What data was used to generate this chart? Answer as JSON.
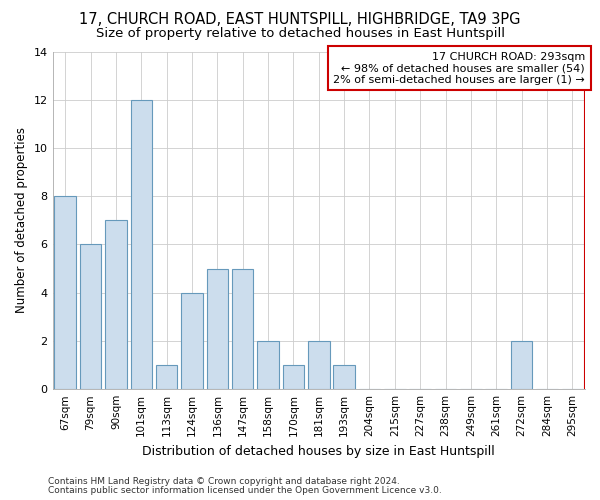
{
  "title1": "17, CHURCH ROAD, EAST HUNTSPILL, HIGHBRIDGE, TA9 3PG",
  "title2": "Size of property relative to detached houses in East Huntspill",
  "xlabel": "Distribution of detached houses by size in East Huntspill",
  "ylabel": "Number of detached properties",
  "categories": [
    "67sqm",
    "79sqm",
    "90sqm",
    "101sqm",
    "113sqm",
    "124sqm",
    "136sqm",
    "147sqm",
    "158sqm",
    "170sqm",
    "181sqm",
    "193sqm",
    "204sqm",
    "215sqm",
    "227sqm",
    "238sqm",
    "249sqm",
    "261sqm",
    "272sqm",
    "284sqm",
    "295sqm"
  ],
  "values": [
    8,
    6,
    7,
    12,
    1,
    4,
    5,
    5,
    2,
    1,
    2,
    1,
    0,
    0,
    0,
    0,
    0,
    0,
    2,
    0,
    0
  ],
  "bar_color": "#ccdded",
  "bar_edge_color": "#6699bb",
  "annotation_box_text": "17 CHURCH ROAD: 293sqm\n← 98% of detached houses are smaller (54)\n2% of semi-detached houses are larger (1) →",
  "annotation_box_color": "#ffffff",
  "annotation_box_edge_color": "#cc0000",
  "red_line_color": "#cc0000",
  "ylim": [
    0,
    14
  ],
  "yticks": [
    0,
    2,
    4,
    6,
    8,
    10,
    12,
    14
  ],
  "grid_color": "#cccccc",
  "bg_color": "#ffffff",
  "footer1": "Contains HM Land Registry data © Crown copyright and database right 2024.",
  "footer2": "Contains public sector information licensed under the Open Government Licence v3.0.",
  "title1_fontsize": 10.5,
  "title2_fontsize": 9.5,
  "xlabel_fontsize": 9,
  "ylabel_fontsize": 8.5,
  "tick_fontsize": 7.5,
  "annotation_fontsize": 8,
  "footer_fontsize": 6.5
}
